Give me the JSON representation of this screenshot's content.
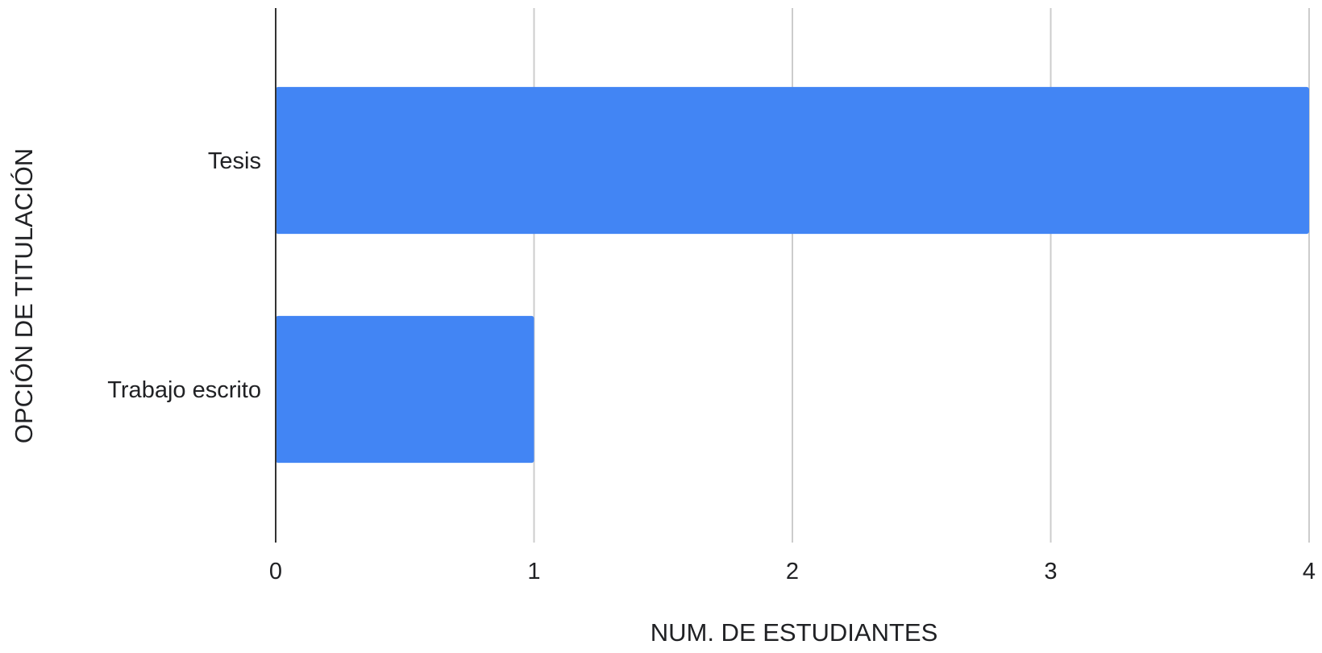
{
  "chart_data": {
    "type": "bar",
    "orientation": "horizontal",
    "categories": [
      "Tesis",
      "Trabajo escrito"
    ],
    "values": [
      4,
      1
    ],
    "xlabel": "NUM. DE ESTUDIANTES",
    "ylabel": "OPCIÓN DE TITULACIÓN",
    "xlim": [
      0,
      4
    ],
    "xticks": [
      "0",
      "1",
      "2",
      "3",
      "4"
    ],
    "grid": true,
    "legend": "none",
    "colors": {
      "bar": "#4285f4",
      "grid": "#cccccc",
      "axis": "#333333"
    }
  }
}
